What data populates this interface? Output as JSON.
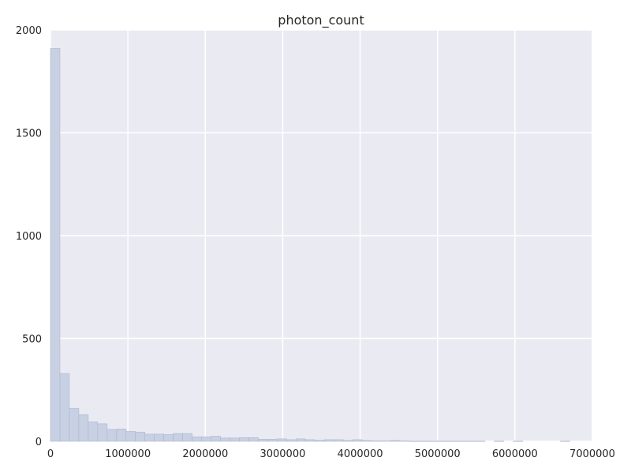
{
  "chart_data": {
    "type": "bar",
    "title": "photon_count",
    "xlabel": "",
    "ylabel": "",
    "xlim": [
      0,
      7000000
    ],
    "ylim": [
      0,
      2000
    ],
    "xticks": [
      0,
      1000000,
      2000000,
      3000000,
      4000000,
      5000000,
      6000000,
      7000000
    ],
    "xtick_labels": [
      "0",
      "1000000",
      "2000000",
      "3000000",
      "4000000",
      "5000000",
      "6000000",
      "7000000"
    ],
    "yticks": [
      0,
      500,
      1000,
      1500,
      2000
    ],
    "ytick_labels": [
      "0",
      "500",
      "1000",
      "1500",
      "2000"
    ],
    "grid": true,
    "bin_width": 122000,
    "bin_start": 0,
    "values": [
      1910,
      330,
      160,
      130,
      95,
      85,
      58,
      60,
      48,
      45,
      35,
      35,
      33,
      38,
      38,
      22,
      22,
      25,
      16,
      16,
      18,
      18,
      10,
      10,
      12,
      8,
      12,
      8,
      5,
      8,
      8,
      4,
      8,
      4,
      2,
      2,
      4,
      2,
      1,
      1,
      1,
      1,
      1,
      1,
      1,
      1,
      0,
      1,
      0,
      1,
      0,
      0,
      0,
      0,
      1
    ],
    "colors": {
      "background": "#eaeaf2",
      "grid": "#ffffff",
      "bar_fill": "#c8d0e4",
      "bar_stroke": "#aeb6cc"
    }
  }
}
